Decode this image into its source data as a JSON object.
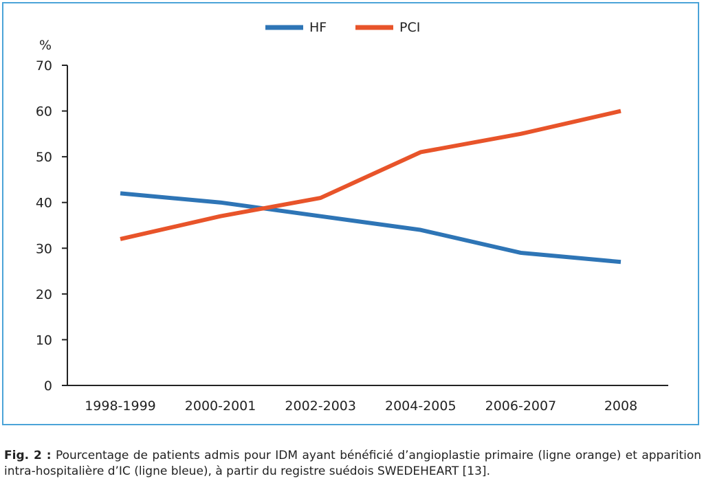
{
  "chart_data": {
    "type": "line",
    "categories": [
      "1998-1999",
      "2000-2001",
      "2002-2003",
      "2004-2005",
      "2006-2007",
      "2008"
    ],
    "series": [
      {
        "name": "HF",
        "values": [
          42,
          40,
          37,
          34,
          29,
          27
        ],
        "color": "#2e75b6"
      },
      {
        "name": "PCI",
        "values": [
          32,
          37,
          41,
          51,
          55,
          60
        ],
        "color": "#e8542a"
      }
    ],
    "ylabel": "%",
    "ylim": [
      0,
      70
    ],
    "yticks": [
      0,
      10,
      20,
      30,
      40,
      50,
      60,
      70
    ],
    "grid": false,
    "legend": "top-center"
  },
  "caption": {
    "label": "Fig. 2 :",
    "text": "Pourcentage de patients admis pour IDM ayant bénéficié d’angioplastie primaire (ligne orange) et apparition intra-hospitalière d’IC (ligne bleue), à partir du registre suédois SWEDEHEART [13]."
  },
  "colors": {
    "frame": "#4aa3d8",
    "axis": "#222222"
  }
}
